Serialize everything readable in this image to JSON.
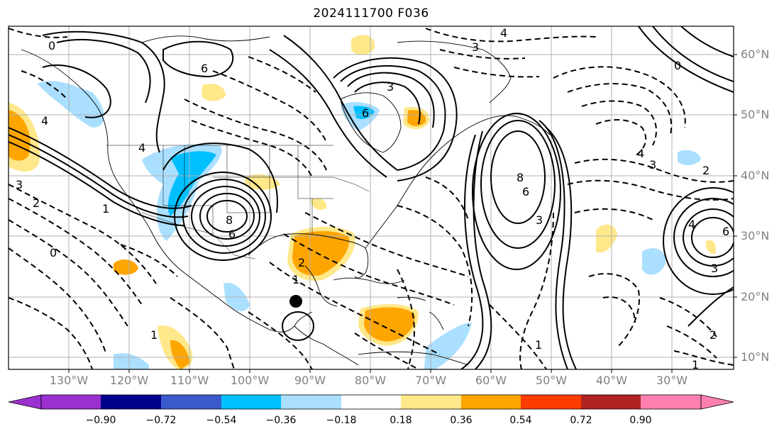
{
  "title": "2024111700 F036",
  "lat_labels": [
    "60°N",
    "50°N",
    "40°N",
    "30°N",
    "20°N",
    "10°N"
  ],
  "lon_labels": [
    "130°W",
    "120°W",
    "110°W",
    "100°W",
    "90°W",
    "80°W",
    "70°W",
    "60°W",
    "50°W",
    "40°W",
    "30°W"
  ],
  "colorbar": {
    "ticks": [
      "−0.90",
      "−0.72",
      "−0.54",
      "−0.36",
      "−0.18",
      "0.18",
      "0.36",
      "0.54",
      "0.72",
      "0.90"
    ],
    "colors": {
      "under": "#9b30d0",
      "bins": [
        "#00008b",
        "#3a5acb",
        "#00bfff",
        "#aadfff",
        "#ffffff",
        "#ffe88a",
        "#ffa500",
        "#ff3c00",
        "#b22222"
      ],
      "over": "#ff80b0"
    }
  },
  "contour_labels": {
    "nw_pacific": "0",
    "west_canada": "6",
    "pac_coast": "4",
    "low_sw": "8",
    "low_sw_6": "6",
    "texas": "2",
    "central_low": "4",
    "hudson": "6",
    "east_canada": "3",
    "atlantic_high": "8",
    "atlantic_6": "6",
    "atlantic_3": "3",
    "mid_4": "4",
    "mid_3": "3",
    "east_2": "2",
    "azores_4": "4",
    "azores_6": "6",
    "azores_3": "3",
    "sw_neg3": "3",
    "sw_neg2": "2",
    "sw_neg1": "1",
    "sw_0": "0",
    "pac_neg1": "1",
    "cen_neg1": "1",
    "se_neg2": "2",
    "se_neg1": "1",
    "far_neg1": "1",
    "north_3": "3",
    "north_4": "4",
    "north_0": "0"
  }
}
